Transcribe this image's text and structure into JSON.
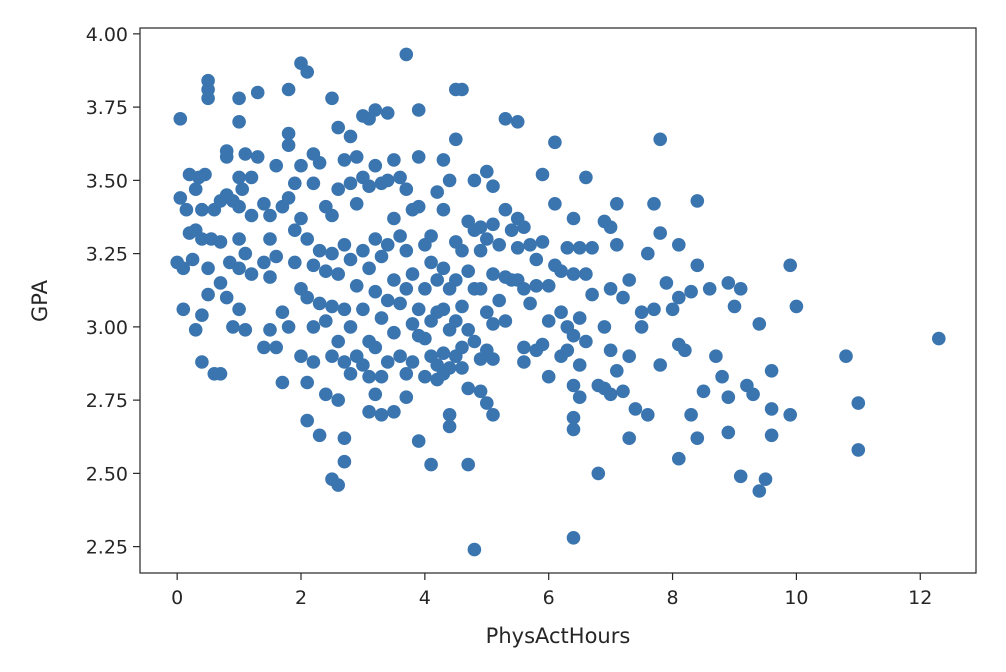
{
  "chart_data": {
    "type": "scatter",
    "title": "",
    "xlabel": "PhysActHours",
    "ylabel": "GPA",
    "xlim": [
      -0.6,
      12.9
    ],
    "ylim": [
      2.16,
      4.02
    ],
    "xticks": [
      0,
      2,
      4,
      6,
      8,
      10,
      12
    ],
    "xtick_labels": [
      "0",
      "2",
      "4",
      "6",
      "8",
      "10",
      "12"
    ],
    "yticks": [
      2.25,
      2.5,
      2.75,
      3.0,
      3.25,
      3.5,
      3.75,
      4.0
    ],
    "ytick_labels": [
      "2.25",
      "2.50",
      "2.75",
      "3.00",
      "3.25",
      "3.50",
      "3.75",
      "4.00"
    ],
    "grid": false,
    "marker_color": "#3b75af",
    "points": [
      [
        0.0,
        3.22
      ],
      [
        0.05,
        3.71
      ],
      [
        0.05,
        3.44
      ],
      [
        0.1,
        3.06
      ],
      [
        0.1,
        3.2
      ],
      [
        0.15,
        3.4
      ],
      [
        0.2,
        3.52
      ],
      [
        0.2,
        3.32
      ],
      [
        0.25,
        3.23
      ],
      [
        0.3,
        3.47
      ],
      [
        0.3,
        3.33
      ],
      [
        0.3,
        2.99
      ],
      [
        0.35,
        3.51
      ],
      [
        0.4,
        3.4
      ],
      [
        0.4,
        3.3
      ],
      [
        0.4,
        3.04
      ],
      [
        0.4,
        2.88
      ],
      [
        0.45,
        3.52
      ],
      [
        0.5,
        3.84
      ],
      [
        0.5,
        3.81
      ],
      [
        0.5,
        3.78
      ],
      [
        0.5,
        3.2
      ],
      [
        0.5,
        3.11
      ],
      [
        0.55,
        3.3
      ],
      [
        0.6,
        3.4
      ],
      [
        0.6,
        2.84
      ],
      [
        0.7,
        3.43
      ],
      [
        0.7,
        3.29
      ],
      [
        0.7,
        3.15
      ],
      [
        0.7,
        2.84
      ],
      [
        0.8,
        3.6
      ],
      [
        0.8,
        3.58
      ],
      [
        0.8,
        3.45
      ],
      [
        0.8,
        3.1
      ],
      [
        0.85,
        3.22
      ],
      [
        0.9,
        3.43
      ],
      [
        0.9,
        3.0
      ],
      [
        1.0,
        3.78
      ],
      [
        1.0,
        3.7
      ],
      [
        1.0,
        3.51
      ],
      [
        1.0,
        3.41
      ],
      [
        1.0,
        3.3
      ],
      [
        1.0,
        3.2
      ],
      [
        1.0,
        3.06
      ],
      [
        1.05,
        3.47
      ],
      [
        1.1,
        3.59
      ],
      [
        1.1,
        3.25
      ],
      [
        1.1,
        2.99
      ],
      [
        1.2,
        3.51
      ],
      [
        1.2,
        3.38
      ],
      [
        1.2,
        3.18
      ],
      [
        1.3,
        3.8
      ],
      [
        1.3,
        3.58
      ],
      [
        1.4,
        3.42
      ],
      [
        1.4,
        3.22
      ],
      [
        1.4,
        2.93
      ],
      [
        1.5,
        3.38
      ],
      [
        1.5,
        3.3
      ],
      [
        1.5,
        3.17
      ],
      [
        1.5,
        2.99
      ],
      [
        1.6,
        3.55
      ],
      [
        1.6,
        3.24
      ],
      [
        1.6,
        2.93
      ],
      [
        1.7,
        3.41
      ],
      [
        1.7,
        3.05
      ],
      [
        1.7,
        2.81
      ],
      [
        1.8,
        3.81
      ],
      [
        1.8,
        3.66
      ],
      [
        1.8,
        3.62
      ],
      [
        1.8,
        3.44
      ],
      [
        1.8,
        3.0
      ],
      [
        1.9,
        3.49
      ],
      [
        1.9,
        3.33
      ],
      [
        1.9,
        3.22
      ],
      [
        2.0,
        3.9
      ],
      [
        2.0,
        3.55
      ],
      [
        2.0,
        3.37
      ],
      [
        2.0,
        3.13
      ],
      [
        2.0,
        2.9
      ],
      [
        2.1,
        3.87
      ],
      [
        2.1,
        3.3
      ],
      [
        2.1,
        3.1
      ],
      [
        2.1,
        2.81
      ],
      [
        2.1,
        2.68
      ],
      [
        2.2,
        3.59
      ],
      [
        2.2,
        3.49
      ],
      [
        2.2,
        3.21
      ],
      [
        2.2,
        3.0
      ],
      [
        2.2,
        2.88
      ],
      [
        2.3,
        3.56
      ],
      [
        2.3,
        3.26
      ],
      [
        2.3,
        3.08
      ],
      [
        2.3,
        2.63
      ],
      [
        2.4,
        3.41
      ],
      [
        2.4,
        3.19
      ],
      [
        2.4,
        3.02
      ],
      [
        2.4,
        2.77
      ],
      [
        2.5,
        3.78
      ],
      [
        2.5,
        3.38
      ],
      [
        2.5,
        3.25
      ],
      [
        2.5,
        3.07
      ],
      [
        2.5,
        2.9
      ],
      [
        2.5,
        2.48
      ],
      [
        2.6,
        3.68
      ],
      [
        2.6,
        3.47
      ],
      [
        2.6,
        3.18
      ],
      [
        2.6,
        2.95
      ],
      [
        2.6,
        2.75
      ],
      [
        2.6,
        2.46
      ],
      [
        2.7,
        3.57
      ],
      [
        2.7,
        3.28
      ],
      [
        2.7,
        3.06
      ],
      [
        2.7,
        2.88
      ],
      [
        2.7,
        2.62
      ],
      [
        2.7,
        2.54
      ],
      [
        2.8,
        3.65
      ],
      [
        2.8,
        3.49
      ],
      [
        2.8,
        3.23
      ],
      [
        2.8,
        3.0
      ],
      [
        2.8,
        2.84
      ],
      [
        2.9,
        3.58
      ],
      [
        2.9,
        3.42
      ],
      [
        2.9,
        3.14
      ],
      [
        2.9,
        2.9
      ],
      [
        3.0,
        3.72
      ],
      [
        3.0,
        3.51
      ],
      [
        3.0,
        3.26
      ],
      [
        3.0,
        3.06
      ],
      [
        3.0,
        2.87
      ],
      [
        3.1,
        3.71
      ],
      [
        3.1,
        3.48
      ],
      [
        3.1,
        3.2
      ],
      [
        3.1,
        2.95
      ],
      [
        3.1,
        2.83
      ],
      [
        3.1,
        2.71
      ],
      [
        3.2,
        3.74
      ],
      [
        3.2,
        3.55
      ],
      [
        3.2,
        3.3
      ],
      [
        3.2,
        3.12
      ],
      [
        3.2,
        2.93
      ],
      [
        3.2,
        2.77
      ],
      [
        3.3,
        3.49
      ],
      [
        3.3,
        3.24
      ],
      [
        3.3,
        3.03
      ],
      [
        3.3,
        2.83
      ],
      [
        3.3,
        2.7
      ],
      [
        3.4,
        3.73
      ],
      [
        3.4,
        3.5
      ],
      [
        3.4,
        3.28
      ],
      [
        3.4,
        3.09
      ],
      [
        3.4,
        2.88
      ],
      [
        3.5,
        3.57
      ],
      [
        3.5,
        3.37
      ],
      [
        3.5,
        3.16
      ],
      [
        3.5,
        2.98
      ],
      [
        3.5,
        2.71
      ],
      [
        3.6,
        3.51
      ],
      [
        3.6,
        3.31
      ],
      [
        3.6,
        3.08
      ],
      [
        3.6,
        2.9
      ],
      [
        3.7,
        3.93
      ],
      [
        3.7,
        3.47
      ],
      [
        3.7,
        3.26
      ],
      [
        3.7,
        3.13
      ],
      [
        3.7,
        2.84
      ],
      [
        3.7,
        2.76
      ],
      [
        3.8,
        3.4
      ],
      [
        3.8,
        3.18
      ],
      [
        3.8,
        3.01
      ],
      [
        3.8,
        2.88
      ],
      [
        3.9,
        3.74
      ],
      [
        3.9,
        3.58
      ],
      [
        3.9,
        3.41
      ],
      [
        3.9,
        3.06
      ],
      [
        3.9,
        2.97
      ],
      [
        3.9,
        2.61
      ],
      [
        4.0,
        3.28
      ],
      [
        4.0,
        3.13
      ],
      [
        4.0,
        2.96
      ],
      [
        4.0,
        2.83
      ],
      [
        4.1,
        3.31
      ],
      [
        4.1,
        3.22
      ],
      [
        4.1,
        3.02
      ],
      [
        4.1,
        2.9
      ],
      [
        4.1,
        2.53
      ],
      [
        4.2,
        3.46
      ],
      [
        4.2,
        3.16
      ],
      [
        4.2,
        3.05
      ],
      [
        4.2,
        2.87
      ],
      [
        4.2,
        2.82
      ],
      [
        4.3,
        3.57
      ],
      [
        4.3,
        3.4
      ],
      [
        4.3,
        3.2
      ],
      [
        4.3,
        3.06
      ],
      [
        4.3,
        2.91
      ],
      [
        4.3,
        2.84
      ],
      [
        4.4,
        3.5
      ],
      [
        4.4,
        3.13
      ],
      [
        4.4,
        2.99
      ],
      [
        4.4,
        2.86
      ],
      [
        4.4,
        2.7
      ],
      [
        4.4,
        2.66
      ],
      [
        4.5,
        3.81
      ],
      [
        4.5,
        3.64
      ],
      [
        4.5,
        3.29
      ],
      [
        4.5,
        3.16
      ],
      [
        4.5,
        3.02
      ],
      [
        4.5,
        2.9
      ],
      [
        4.6,
        3.81
      ],
      [
        4.6,
        3.26
      ],
      [
        4.6,
        3.07
      ],
      [
        4.6,
        2.93
      ],
      [
        4.6,
        2.86
      ],
      [
        4.7,
        3.36
      ],
      [
        4.7,
        3.19
      ],
      [
        4.7,
        2.99
      ],
      [
        4.7,
        2.79
      ],
      [
        4.7,
        2.53
      ],
      [
        4.8,
        3.5
      ],
      [
        4.8,
        3.33
      ],
      [
        4.8,
        3.13
      ],
      [
        4.8,
        2.95
      ],
      [
        4.8,
        2.24
      ],
      [
        4.9,
        3.34
      ],
      [
        4.9,
        3.26
      ],
      [
        4.9,
        3.13
      ],
      [
        4.9,
        2.89
      ],
      [
        4.9,
        2.78
      ],
      [
        5.0,
        3.53
      ],
      [
        5.0,
        3.3
      ],
      [
        5.0,
        3.05
      ],
      [
        5.0,
        2.92
      ],
      [
        5.0,
        2.74
      ],
      [
        5.1,
        3.48
      ],
      [
        5.1,
        3.35
      ],
      [
        5.1,
        3.18
      ],
      [
        5.1,
        3.01
      ],
      [
        5.1,
        2.89
      ],
      [
        5.1,
        2.7
      ],
      [
        5.2,
        3.28
      ],
      [
        5.2,
        3.09
      ],
      [
        5.3,
        3.71
      ],
      [
        5.3,
        3.4
      ],
      [
        5.3,
        3.17
      ],
      [
        5.3,
        3.02
      ],
      [
        5.4,
        3.33
      ],
      [
        5.4,
        3.16
      ],
      [
        5.5,
        3.7
      ],
      [
        5.5,
        3.37
      ],
      [
        5.5,
        3.27
      ],
      [
        5.5,
        3.16
      ],
      [
        5.6,
        3.34
      ],
      [
        5.6,
        3.13
      ],
      [
        5.6,
        2.93
      ],
      [
        5.6,
        2.88
      ],
      [
        5.7,
        3.28
      ],
      [
        5.7,
        3.08
      ],
      [
        5.8,
        3.23
      ],
      [
        5.8,
        3.14
      ],
      [
        5.8,
        2.92
      ],
      [
        5.9,
        3.52
      ],
      [
        5.9,
        3.29
      ],
      [
        5.9,
        2.94
      ],
      [
        6.0,
        3.14
      ],
      [
        6.0,
        3.02
      ],
      [
        6.0,
        2.83
      ],
      [
        6.1,
        3.63
      ],
      [
        6.1,
        3.42
      ],
      [
        6.1,
        3.21
      ],
      [
        6.2,
        3.19
      ],
      [
        6.2,
        3.05
      ],
      [
        6.2,
        2.9
      ],
      [
        6.3,
        3.27
      ],
      [
        6.3,
        3.0
      ],
      [
        6.3,
        2.92
      ],
      [
        6.4,
        3.37
      ],
      [
        6.4,
        3.18
      ],
      [
        6.4,
        2.97
      ],
      [
        6.4,
        2.8
      ],
      [
        6.4,
        2.69
      ],
      [
        6.4,
        2.65
      ],
      [
        6.4,
        2.28
      ],
      [
        6.5,
        3.27
      ],
      [
        6.5,
        3.03
      ],
      [
        6.5,
        2.87
      ],
      [
        6.5,
        2.76
      ],
      [
        6.6,
        3.51
      ],
      [
        6.6,
        3.18
      ],
      [
        6.6,
        2.95
      ],
      [
        6.7,
        3.27
      ],
      [
        6.7,
        3.11
      ],
      [
        6.8,
        2.8
      ],
      [
        6.8,
        2.5
      ],
      [
        6.9,
        3.36
      ],
      [
        6.9,
        3.0
      ],
      [
        6.9,
        2.79
      ],
      [
        7.0,
        3.34
      ],
      [
        7.0,
        3.13
      ],
      [
        7.0,
        2.92
      ],
      [
        7.0,
        2.77
      ],
      [
        7.1,
        3.42
      ],
      [
        7.1,
        3.28
      ],
      [
        7.1,
        2.85
      ],
      [
        7.2,
        3.1
      ],
      [
        7.2,
        2.78
      ],
      [
        7.3,
        3.16
      ],
      [
        7.3,
        2.9
      ],
      [
        7.3,
        2.62
      ],
      [
        7.4,
        2.72
      ],
      [
        7.5,
        3.05
      ],
      [
        7.5,
        3.0
      ],
      [
        7.6,
        3.25
      ],
      [
        7.6,
        2.7
      ],
      [
        7.7,
        3.42
      ],
      [
        7.7,
        3.06
      ],
      [
        7.8,
        3.64
      ],
      [
        7.8,
        3.32
      ],
      [
        7.8,
        2.87
      ],
      [
        7.9,
        3.15
      ],
      [
        8.0,
        3.06
      ],
      [
        8.1,
        3.28
      ],
      [
        8.1,
        3.1
      ],
      [
        8.1,
        2.94
      ],
      [
        8.1,
        2.55
      ],
      [
        8.2,
        2.92
      ],
      [
        8.3,
        3.12
      ],
      [
        8.3,
        2.7
      ],
      [
        8.4,
        3.43
      ],
      [
        8.4,
        3.21
      ],
      [
        8.4,
        2.62
      ],
      [
        8.5,
        2.78
      ],
      [
        8.6,
        3.13
      ],
      [
        8.7,
        2.9
      ],
      [
        8.8,
        2.83
      ],
      [
        8.9,
        3.15
      ],
      [
        8.9,
        2.76
      ],
      [
        8.9,
        2.64
      ],
      [
        9.0,
        3.07
      ],
      [
        9.1,
        3.13
      ],
      [
        9.1,
        2.49
      ],
      [
        9.2,
        2.8
      ],
      [
        9.3,
        2.77
      ],
      [
        9.4,
        3.01
      ],
      [
        9.4,
        2.44
      ],
      [
        9.5,
        2.48
      ],
      [
        9.6,
        2.85
      ],
      [
        9.6,
        2.72
      ],
      [
        9.6,
        2.63
      ],
      [
        9.9,
        3.21
      ],
      [
        9.9,
        2.7
      ],
      [
        10.0,
        3.07
      ],
      [
        10.8,
        2.9
      ],
      [
        11.0,
        2.74
      ],
      [
        11.0,
        2.58
      ],
      [
        12.3,
        2.96
      ]
    ]
  }
}
